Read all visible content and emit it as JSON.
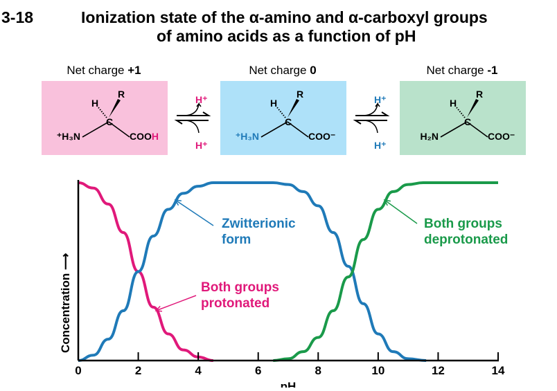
{
  "title": {
    "number": "3-18",
    "line1": "Ionization state of the α-amino and α-carboxyl groups",
    "line2": "of amino acids as a function of pH"
  },
  "states": [
    {
      "caption": "Net charge ",
      "charge": "+1",
      "amine": "⁺H₃N",
      "carboxyl": "COO",
      "carboxyl_suffix": "H",
      "box_color": "#f9c1dc"
    },
    {
      "caption": "Net charge ",
      "charge": "0",
      "amine": "⁺H₃N",
      "carboxyl": "COO⁻",
      "carboxyl_suffix": "",
      "box_color": "#aee1f9"
    },
    {
      "caption": "Net charge ",
      "charge": "-1",
      "amine": "H₂N",
      "carboxyl": "COO⁻",
      "carboxyl_suffix": "",
      "box_color": "#b9e2cb"
    }
  ],
  "atoms": {
    "r": "R",
    "h": "H",
    "c": "C"
  },
  "equilibria": [
    {
      "top": "H⁺",
      "bottom": "H⁺",
      "color": "#e0197a"
    },
    {
      "top": "H⁺",
      "bottom": "H⁺",
      "color": "#1f7ab8"
    }
  ],
  "chart_data": {
    "type": "line",
    "xlabel": "pH",
    "ylabel": "Concentration ⟶",
    "xlim": [
      0,
      14
    ],
    "ylim": [
      0,
      1
    ],
    "xticks": [
      "0",
      "2",
      "4",
      "6",
      "8",
      "10",
      "12",
      "14"
    ],
    "series": [
      {
        "color": "#e0197a",
        "x": [
          0,
          0.5,
          1,
          1.5,
          2,
          2.5,
          3,
          3.5,
          4,
          4.5
        ],
        "y": [
          1,
          0.97,
          0.88,
          0.72,
          0.5,
          0.3,
          0.15,
          0.06,
          0.02,
          0
        ]
      },
      {
        "color": "#1f7ab8",
        "x": [
          0,
          0.5,
          1,
          1.5,
          2,
          2.5,
          3,
          3.5,
          4,
          4.5,
          6.5,
          7,
          7.5,
          8,
          8.5,
          9,
          9.5,
          10,
          10.5,
          11,
          11.6
        ],
        "y": [
          0,
          0.03,
          0.12,
          0.28,
          0.5,
          0.7,
          0.85,
          0.94,
          0.98,
          1,
          1,
          0.99,
          0.95,
          0.87,
          0.72,
          0.53,
          0.32,
          0.15,
          0.05,
          0.01,
          0
        ]
      },
      {
        "color": "#1a9a4a",
        "x": [
          6.5,
          7,
          7.5,
          8,
          8.5,
          9,
          9.5,
          10,
          10.5,
          11,
          11.5,
          12,
          13,
          14
        ],
        "y": [
          0,
          0.01,
          0.05,
          0.13,
          0.28,
          0.47,
          0.68,
          0.85,
          0.95,
          0.99,
          1,
          1,
          1,
          1
        ]
      }
    ],
    "annotations": [
      {
        "line1": "Zwitterionic",
        "line2": "form",
        "color": "#1f7ab8"
      },
      {
        "line1": "Both groups",
        "line2": "deprotonated",
        "color": "#1a9a4a"
      },
      {
        "line1": "Both groups",
        "line2": "protonated",
        "color": "#e0197a"
      }
    ]
  }
}
